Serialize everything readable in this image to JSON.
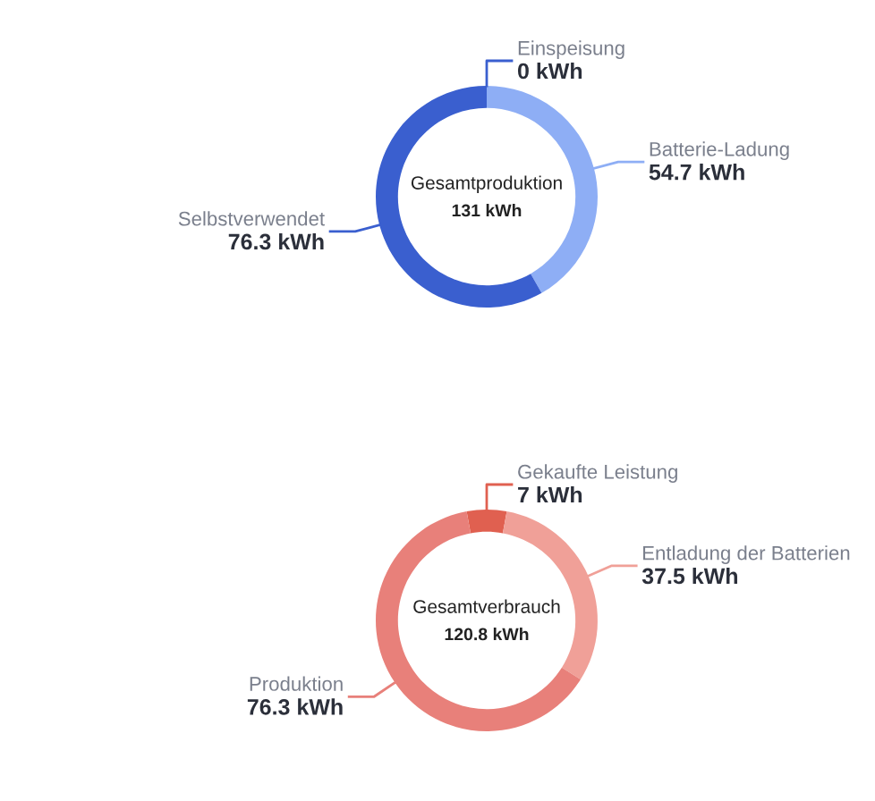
{
  "chart_data": [
    {
      "type": "donut",
      "title": "Gesamtproduktion",
      "subtitle": "131 kWh",
      "categories": [
        "Einspeisung",
        "Batterie-Ladung",
        "Selbstverwendet"
      ],
      "values": [
        0,
        54.7,
        76.3
      ],
      "value_labels": [
        "0 kWh",
        "54.7 kWh",
        "76.3 kWh"
      ],
      "colors": [
        "#3a5fcf",
        "#8eaef5",
        "#3a5fcf"
      ]
    },
    {
      "type": "donut",
      "title": "Gesamtverbrauch",
      "subtitle": "120.8 kWh",
      "categories": [
        "Gekaufte Leistung",
        "Entladung der Batterien",
        "Produktion"
      ],
      "values": [
        7,
        37.5,
        76.3
      ],
      "value_labels": [
        "7 kWh",
        "37.5 kWh",
        "76.3 kWh"
      ],
      "colors": [
        "#e06050",
        "#f0a098",
        "#e8807a"
      ]
    }
  ]
}
